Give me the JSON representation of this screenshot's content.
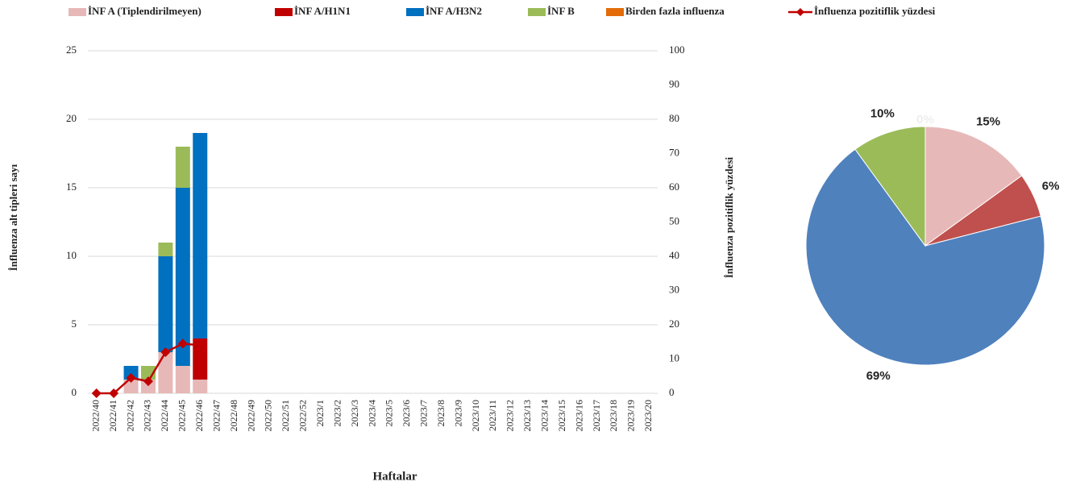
{
  "chart_data": [
    {
      "type": "bar",
      "stacked": true,
      "x_label": "Haftalar",
      "y_label": "İnfluenza alt tipleri sayı",
      "y2_label": "İnfluenza pozitiflik yüzdesi",
      "categories": [
        "2022/40",
        "2022/41",
        "2022/42",
        "2022/43",
        "2022/44",
        "2022/45",
        "2022/46",
        "2022/47",
        "2022/48",
        "2022/49",
        "2022/50",
        "2022/51",
        "2022/52",
        "2023/1",
        "2023/2",
        "2023/3",
        "2023/4",
        "2023/5",
        "2023/6",
        "2023/7",
        "2023/8",
        "2023/9",
        "2023/10",
        "2023/11",
        "2023/12",
        "2023/13",
        "2023/14",
        "2023/15",
        "2023/16",
        "2023/17",
        "2023/18",
        "2023/19",
        "2023/20"
      ],
      "series": [
        {
          "name": "İNF A (Tiplendirilmeyen)",
          "color": "#e6b8b7",
          "values": [
            0,
            0,
            1,
            1,
            3,
            2,
            1,
            0,
            0,
            0,
            0,
            0,
            0,
            0,
            0,
            0,
            0,
            0,
            0,
            0,
            0,
            0,
            0,
            0,
            0,
            0,
            0,
            0,
            0,
            0,
            0,
            0,
            0
          ]
        },
        {
          "name": "İNF A/H1N1",
          "color": "#c00000",
          "values": [
            0,
            0,
            0,
            0,
            0,
            0,
            3,
            0,
            0,
            0,
            0,
            0,
            0,
            0,
            0,
            0,
            0,
            0,
            0,
            0,
            0,
            0,
            0,
            0,
            0,
            0,
            0,
            0,
            0,
            0,
            0,
            0,
            0
          ]
        },
        {
          "name": "İNF A/H3N2",
          "color": "#0070c0",
          "values": [
            0,
            0,
            1,
            0,
            7,
            13,
            15,
            0,
            0,
            0,
            0,
            0,
            0,
            0,
            0,
            0,
            0,
            0,
            0,
            0,
            0,
            0,
            0,
            0,
            0,
            0,
            0,
            0,
            0,
            0,
            0,
            0,
            0
          ]
        },
        {
          "name": "İNF B",
          "color": "#9bbb59",
          "values": [
            0,
            0,
            0,
            1,
            1,
            3,
            0,
            0,
            0,
            0,
            0,
            0,
            0,
            0,
            0,
            0,
            0,
            0,
            0,
            0,
            0,
            0,
            0,
            0,
            0,
            0,
            0,
            0,
            0,
            0,
            0,
            0,
            0
          ]
        },
        {
          "name": "Birden fazla influenza",
          "color": "#e36c09",
          "values": [
            0,
            0,
            0,
            0,
            0,
            0,
            0,
            0,
            0,
            0,
            0,
            0,
            0,
            0,
            0,
            0,
            0,
            0,
            0,
            0,
            0,
            0,
            0,
            0,
            0,
            0,
            0,
            0,
            0,
            0,
            0,
            0,
            0
          ]
        },
        {
          "name": "İnfluenza pozitiflik yüzdesi",
          "color": "#c00000",
          "type": "line",
          "axis": "y2",
          "values": [
            0,
            0,
            4.5,
            3.5,
            12,
            14.5,
            14,
            null,
            null,
            null,
            null,
            null,
            null,
            null,
            null,
            null,
            null,
            null,
            null,
            null,
            null,
            null,
            null,
            null,
            null,
            null,
            null,
            null,
            null,
            null,
            null,
            null,
            null
          ]
        }
      ],
      "ylim": [
        0,
        25
      ],
      "yticks": [
        0,
        5,
        10,
        15,
        20,
        25
      ],
      "y2lim": [
        0,
        100
      ],
      "y2ticks": [
        0,
        10,
        20,
        30,
        40,
        50,
        60,
        70,
        80,
        90,
        100
      ],
      "grid": true,
      "legend": "top"
    },
    {
      "type": "pie",
      "values": [
        15,
        6,
        69,
        10,
        0
      ],
      "value_labels": [
        "15%",
        "6%",
        "69%",
        "10%",
        "0%"
      ],
      "colors": [
        "#e6b9b8",
        "#c0504d",
        "#4f81bd",
        "#9bbb59",
        "#f79646"
      ]
    }
  ]
}
